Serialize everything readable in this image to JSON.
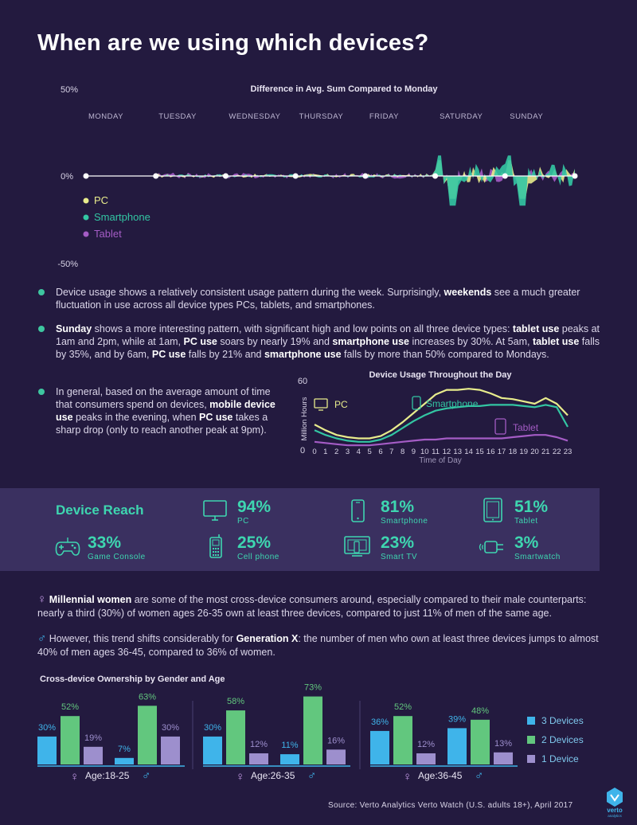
{
  "title": "When are we using which devices?",
  "colors": {
    "pc": "#e8ec8c",
    "smartphone": "#33c6a3",
    "tablet": "#a45cc5",
    "accent": "#3ed6b0",
    "three_devices": "#3fb4ea",
    "two_devices": "#62c77e",
    "one_device": "#9d8fcd"
  },
  "chart_data": [
    {
      "type": "area",
      "title": "Difference in Avg. Sum Compared to Monday",
      "y_ticks": [
        "50%",
        "0%",
        "-50%"
      ],
      "ylim": [
        -50,
        50
      ],
      "days": [
        "MONDAY",
        "TUESDAY",
        "WEDNESDAY",
        "THURSDAY",
        "FRIDAY",
        "SATURDAY",
        "SUNDAY"
      ],
      "legend": [
        "PC",
        "Smartphone",
        "Tablet"
      ],
      "legend_placement": "left",
      "hour_labels": "",
      "series": [
        {
          "name": "PC",
          "color": "#e8ec8c",
          "monday": 0
        },
        {
          "name": "Smartphone",
          "color": "#33c6a3",
          "monday": 0
        },
        {
          "name": "Tablet",
          "color": "#a45cc5",
          "monday": 0
        }
      ],
      "sunday_highlights": [
        {
          "series": "Tablet",
          "hour": "1am",
          "change": "high"
        },
        {
          "series": "PC",
          "hour": "1am",
          "change": 19
        },
        {
          "series": "Smartphone",
          "hour": "1am",
          "change": 30
        },
        {
          "series": "Tablet",
          "hour": "5am",
          "change": -35
        },
        {
          "series": "PC",
          "hour": "6am",
          "change": -21
        },
        {
          "series": "Smartphone",
          "hour": "6am",
          "change": -50
        }
      ]
    },
    {
      "type": "line",
      "title": "Device Usage Throughout the Day",
      "xlabel": "Time of Day",
      "ylabel": "Million Hours",
      "ylim": [
        0,
        60
      ],
      "y_ticks": [
        "60",
        "0"
      ],
      "x": [
        0,
        1,
        2,
        3,
        4,
        5,
        6,
        7,
        8,
        9,
        10,
        11,
        12,
        13,
        14,
        15,
        16,
        17,
        18,
        19,
        20,
        21,
        22,
        23
      ],
      "series": [
        {
          "name": "PC",
          "color": "#e8ec8c",
          "values": [
            22,
            17,
            13,
            11,
            10,
            10,
            12,
            17,
            24,
            32,
            40,
            48,
            52,
            52,
            53,
            52,
            49,
            45,
            44,
            42,
            40,
            45,
            40,
            30
          ]
        },
        {
          "name": "Smartphone",
          "color": "#33c6a3",
          "values": [
            17,
            13,
            10,
            8,
            7,
            7,
            9,
            13,
            19,
            25,
            30,
            34,
            36,
            37,
            38,
            38,
            39,
            39,
            39,
            38,
            37,
            39,
            37,
            20
          ]
        },
        {
          "name": "Tablet",
          "color": "#a45cc5",
          "values": [
            7,
            6,
            5,
            4,
            4,
            4,
            5,
            6,
            7,
            8,
            9,
            9,
            10,
            10,
            10,
            10,
            10,
            10,
            11,
            12,
            13,
            13,
            11,
            8
          ]
        }
      ]
    },
    {
      "type": "bar",
      "title": "Cross-device Ownership by Gender and Age",
      "legend": [
        "3 Devices",
        "2 Devices",
        "1 Device"
      ],
      "legend_placement": "right",
      "ylim": [
        0,
        80
      ],
      "groups": [
        {
          "age": "Age:18-25",
          "female": [
            30,
            52,
            19
          ],
          "male": [
            7,
            63,
            30
          ]
        },
        {
          "age": "Age:26-35",
          "female": [
            30,
            58,
            12
          ],
          "male": [
            11,
            73,
            16
          ]
        },
        {
          "age": "Age:36-45",
          "female": [
            36,
            52,
            12
          ],
          "male": [
            39,
            48,
            13
          ]
        }
      ]
    }
  ],
  "bullets": [
    {
      "parts": [
        {
          "t": "Device usage shows a relatively consistent usage pattern during the week. Surprisingly, "
        },
        {
          "t": "weekends",
          "b": true
        },
        {
          "t": " see a much greater fluctuation in use across all device types PCs, tablets, and smartphones."
        }
      ]
    },
    {
      "parts": [
        {
          "t": "Sunday",
          "b": true
        },
        {
          "t": " shows a more interesting pattern, with significant high and low points on all three device types: "
        },
        {
          "t": "tablet use",
          "b": true
        },
        {
          "t": " peaks at 1am and 2pm, while at 1am, "
        },
        {
          "t": "PC use",
          "b": true
        },
        {
          "t": " soars by nearly 19% and "
        },
        {
          "t": "smartphone use",
          "b": true
        },
        {
          "t": " increases by 30%. At 5am, "
        },
        {
          "t": "tablet use",
          "b": true
        },
        {
          "t": " falls by 35%, and by 6am, "
        },
        {
          "t": "PC use",
          "b": true
        },
        {
          "t": " falls by 21% and "
        },
        {
          "t": "smartphone use",
          "b": true
        },
        {
          "t": " falls by more than 50% compared to Mondays."
        }
      ]
    },
    {
      "parts": [
        {
          "t": "In general, based on the average amount of time that consumers spend on devices, "
        },
        {
          "t": "mobile device use",
          "b": true
        },
        {
          "t": " peaks in the evening, when "
        },
        {
          "t": "PC use",
          "b": true
        },
        {
          "t": " takes a sharp drop (only to reach another peak at 9pm)."
        }
      ]
    }
  ],
  "device_reach": {
    "title": "Device Reach",
    "items": [
      {
        "icon": "monitor-icon",
        "pct": "94%",
        "label": "PC"
      },
      {
        "icon": "smartphone-icon",
        "pct": "81%",
        "label": "Smartphone"
      },
      {
        "icon": "tablet-icon",
        "pct": "51%",
        "label": "Tablet"
      },
      {
        "icon": "gamepad-icon",
        "pct": "33%",
        "label": "Game Console"
      },
      {
        "icon": "cell-phone-icon",
        "pct": "25%",
        "label": "Cell phone"
      },
      {
        "icon": "smart-tv-icon",
        "pct": "23%",
        "label": "Smart TV"
      },
      {
        "icon": "smartwatch-icon",
        "pct": "3%",
        "label": "Smartwatch"
      }
    ]
  },
  "paragraphs": [
    {
      "symbol": "♀",
      "parts": [
        {
          "t": "Millennial women",
          "b": true
        },
        {
          "t": " are some of the most cross-device consumers around, especially compared to their male counterparts: nearly a third (30%) of women ages 26-35 own at least three devices, compared to just 11% of men of the same age."
        }
      ]
    },
    {
      "symbol": "♂",
      "parts": [
        {
          "t": " However, this trend shifts considerably for "
        },
        {
          "t": "Generation X",
          "b": true
        },
        {
          "t": ": the number of men who own at least three devices jumps to almost 40% of men ages 36-45, compared to 36% of women."
        }
      ]
    }
  ],
  "source": "Source: Verto Analytics Verto Watch (U.S. adults 18+), April 2017",
  "logo": {
    "name": "verto",
    "sub": "analytics"
  }
}
